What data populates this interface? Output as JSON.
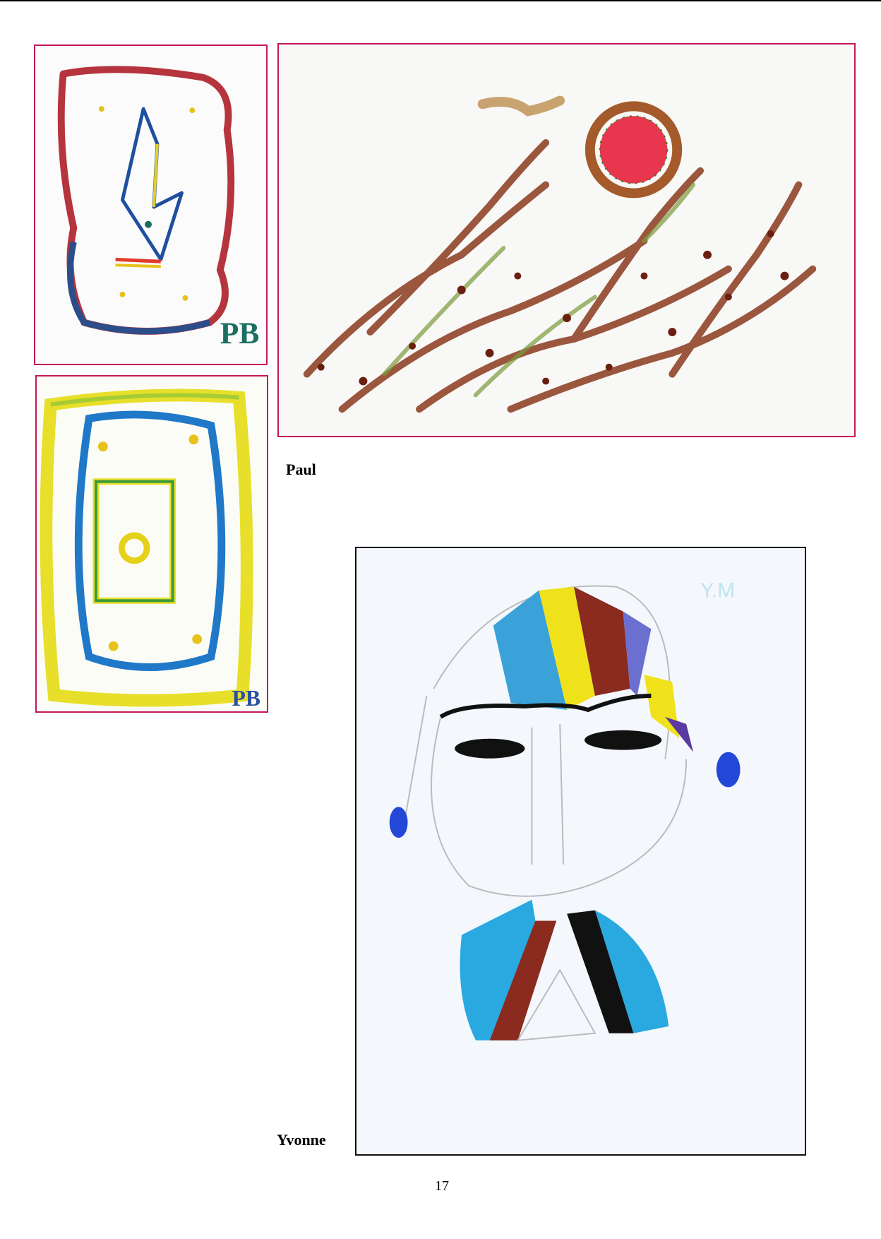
{
  "captions": {
    "paul": "Paul",
    "yvonne": "Yvonne"
  },
  "page_number": "17",
  "artworks": [
    {
      "artist": "Paul",
      "signature": "PB",
      "subject": "abstract frame with blue-yellow shape"
    },
    {
      "artist": "Paul",
      "signature": "PB",
      "subject": "concentric yellow-blue-green frames with dots"
    },
    {
      "artist": "Paul",
      "signature": "",
      "subject": "brown dotted strokes with red sun"
    },
    {
      "artist": "Yvonne",
      "signature": "Y.M",
      "subject": "face with rainbow hat and earrings"
    }
  ],
  "colors": {
    "frame_border": "#c2185b",
    "photo_border": "#111111"
  }
}
